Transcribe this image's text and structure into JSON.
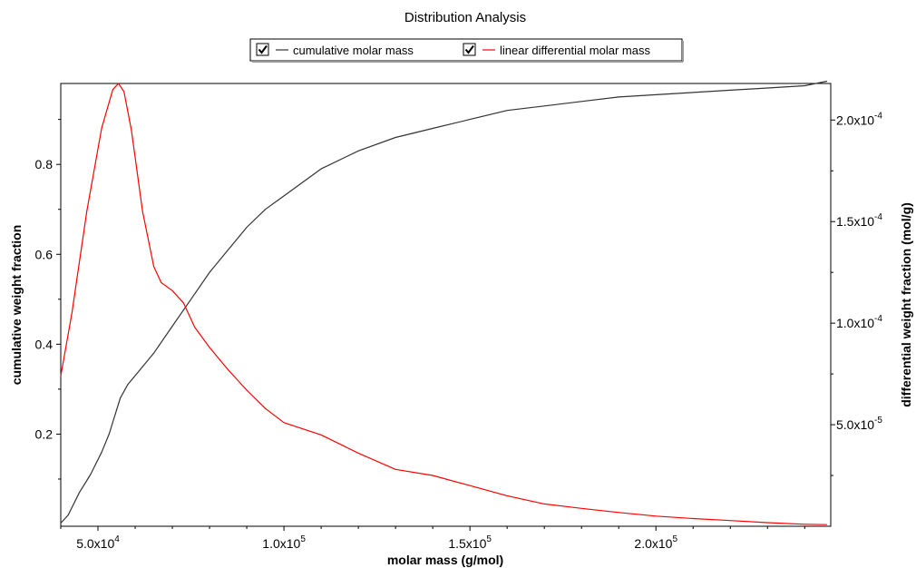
{
  "chart_data": {
    "type": "line",
    "title": "Distribution Analysis",
    "legend": [
      {
        "label": "cumulative molar mass",
        "color": "#333333",
        "checked": true
      },
      {
        "label": "linear differential molar mass",
        "color": "#ff0000",
        "checked": true
      }
    ],
    "legend_placement": "top",
    "xlabel": "molar mass (g/mol)",
    "ylabel_left": "cumulative weight fraction",
    "ylabel_right": "differential weight fraction (mol/g)",
    "xlim": [
      40000,
      247000
    ],
    "ylim_left": [
      -0.005,
      0.98
    ],
    "ylim_right": [
      0,
      0.000218
    ],
    "grid": false,
    "x_ticks": [
      {
        "value": 50000,
        "mantissa": "5.0x10",
        "exponent": "4"
      },
      {
        "value": 100000,
        "mantissa": "1.0x10",
        "exponent": "5"
      },
      {
        "value": 150000,
        "mantissa": "1.5x10",
        "exponent": "5"
      },
      {
        "value": 200000,
        "mantissa": "2.0x10",
        "exponent": "5"
      }
    ],
    "y_left_ticks": [
      {
        "value": 0.2,
        "label": "0.2"
      },
      {
        "value": 0.4,
        "label": "0.4"
      },
      {
        "value": 0.6,
        "label": "0.6"
      },
      {
        "value": 0.8,
        "label": "0.8"
      }
    ],
    "y_right_ticks": [
      {
        "value": 5e-05,
        "mantissa": "5.0x10",
        "exponent": "-5"
      },
      {
        "value": 0.0001,
        "mantissa": "1.0x10",
        "exponent": "-4"
      },
      {
        "value": 0.00015,
        "mantissa": "1.5x10",
        "exponent": "-4"
      },
      {
        "value": 0.0002,
        "mantissa": "2.0x10",
        "exponent": "-4"
      }
    ],
    "series": [
      {
        "name": "cumulative molar mass",
        "axis": "left",
        "color": "#333333",
        "x": [
          40000,
          42000,
          45000,
          48000,
          51000,
          53000,
          56000,
          58000,
          61000,
          65000,
          70000,
          75000,
          80000,
          85000,
          90000,
          95000,
          100000,
          110000,
          120000,
          130000,
          140000,
          150000,
          160000,
          170000,
          180000,
          190000,
          200000,
          210000,
          220000,
          230000,
          240000,
          246000
        ],
        "y": [
          0.002,
          0.02,
          0.07,
          0.11,
          0.16,
          0.2,
          0.28,
          0.31,
          0.34,
          0.38,
          0.44,
          0.5,
          0.56,
          0.61,
          0.66,
          0.7,
          0.73,
          0.79,
          0.83,
          0.86,
          0.88,
          0.9,
          0.92,
          0.93,
          0.94,
          0.95,
          0.955,
          0.96,
          0.965,
          0.97,
          0.975,
          0.985
        ]
      },
      {
        "name": "linear differential molar mass",
        "axis": "right",
        "color": "#ff0000",
        "x": [
          40000,
          43000,
          47000,
          51000,
          54000,
          55500,
          57000,
          59000,
          62000,
          65000,
          67000,
          70000,
          73000,
          76000,
          80000,
          85000,
          90000,
          95000,
          100000,
          110000,
          120000,
          130000,
          140000,
          150000,
          160000,
          170000,
          180000,
          190000,
          200000,
          210000,
          220000,
          230000,
          240000,
          246000
        ],
        "y": [
          7.4e-05,
          0.000105,
          0.000155,
          0.000196,
          0.000215,
          0.000218,
          0.000214,
          0.000195,
          0.000155,
          0.000128,
          0.00012,
          0.000116,
          0.00011,
          9.8e-05,
          8.8e-05,
          7.7e-05,
          6.7e-05,
          5.8e-05,
          5.1e-05,
          4.5e-05,
          3.6e-05,
          2.8e-05,
          2.5e-05,
          2e-05,
          1.5e-05,
          1.1e-05,
          8.8e-06,
          6.8e-06,
          5e-06,
          3.8e-06,
          2.8e-06,
          1.8e-06,
          1e-06,
          8e-07
        ]
      }
    ]
  }
}
